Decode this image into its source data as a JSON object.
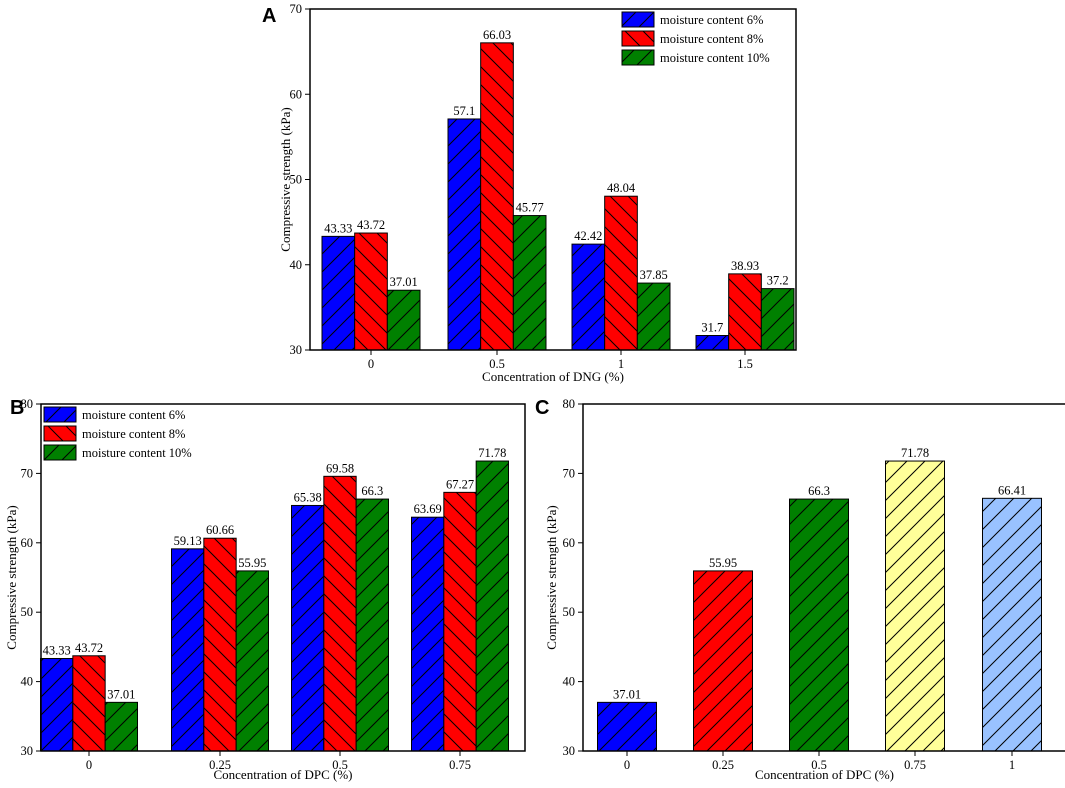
{
  "chart_data": [
    {
      "panel": "A",
      "type": "bar",
      "xlabel": "Concentration of  DNG (%)",
      "ylabel": "Compressive strength (kPa)",
      "ylim": [
        30,
        70
      ],
      "yticks": [
        30,
        40,
        50,
        60,
        70
      ],
      "categories": [
        "0",
        "0.5",
        "1",
        "1.5"
      ],
      "legend_position": "top-right",
      "series": [
        {
          "name": "moisture content 6%",
          "color": "#0000ff",
          "hatch": "forward",
          "values": [
            43.33,
            57.1,
            42.42,
            31.7
          ],
          "labels": [
            "43.33",
            "57.1",
            "42.42",
            "31.7"
          ]
        },
        {
          "name": "moisture content 8%",
          "color": "#ff0000",
          "hatch": "back",
          "values": [
            43.72,
            66.03,
            48.04,
            38.93
          ],
          "labels": [
            "43.72",
            "66.03",
            "48.04",
            "38.93"
          ]
        },
        {
          "name": "moisture content 10%",
          "color": "#008000",
          "hatch": "forward",
          "values": [
            37.01,
            45.77,
            37.85,
            37.2
          ],
          "labels": [
            "37.01",
            "45.77",
            "37.85",
            "37.2"
          ]
        }
      ]
    },
    {
      "panel": "B",
      "type": "bar",
      "xlabel": "Concentration of  DPC (%)",
      "ylabel": "Compressive strength (kPa)",
      "ylim": [
        30,
        80
      ],
      "yticks": [
        30,
        40,
        50,
        60,
        70,
        80
      ],
      "categories": [
        "0",
        "0.25",
        "0.5",
        "0.75"
      ],
      "legend_position": "top-left",
      "series": [
        {
          "name": "moisture content 6%",
          "color": "#0000ff",
          "hatch": "forward",
          "values": [
            43.33,
            59.13,
            65.38,
            63.69
          ],
          "labels": [
            "43.33",
            "59.13",
            "65.38",
            "63.69"
          ]
        },
        {
          "name": "moisture content 8%",
          "color": "#ff0000",
          "hatch": "back",
          "values": [
            43.72,
            60.66,
            69.58,
            67.27
          ],
          "labels": [
            "43.72",
            "60.66",
            "69.58",
            "67.27"
          ]
        },
        {
          "name": "moisture content 10%",
          "color": "#008000",
          "hatch": "forward",
          "values": [
            37.01,
            55.95,
            66.3,
            71.78
          ],
          "labels": [
            "37.01",
            "55.95",
            "66.3",
            "71.78"
          ]
        }
      ]
    },
    {
      "panel": "C",
      "type": "bar",
      "xlabel": "Concentration of  DPC (%)",
      "ylabel": "Compressive strength (kPa)",
      "ylim": [
        30,
        80
      ],
      "yticks": [
        30,
        40,
        50,
        60,
        70,
        80
      ],
      "categories": [
        "0",
        "0.25",
        "0.5",
        "0.75",
        "1"
      ],
      "values": [
        37.01,
        55.95,
        66.3,
        71.78,
        66.41
      ],
      "labels": [
        "37.01",
        "55.95",
        "66.3",
        "71.78",
        "66.41"
      ],
      "colors": [
        "#0000ff",
        "#ff0000",
        "#008000",
        "#ffff99",
        "#99c2ff"
      ]
    }
  ]
}
